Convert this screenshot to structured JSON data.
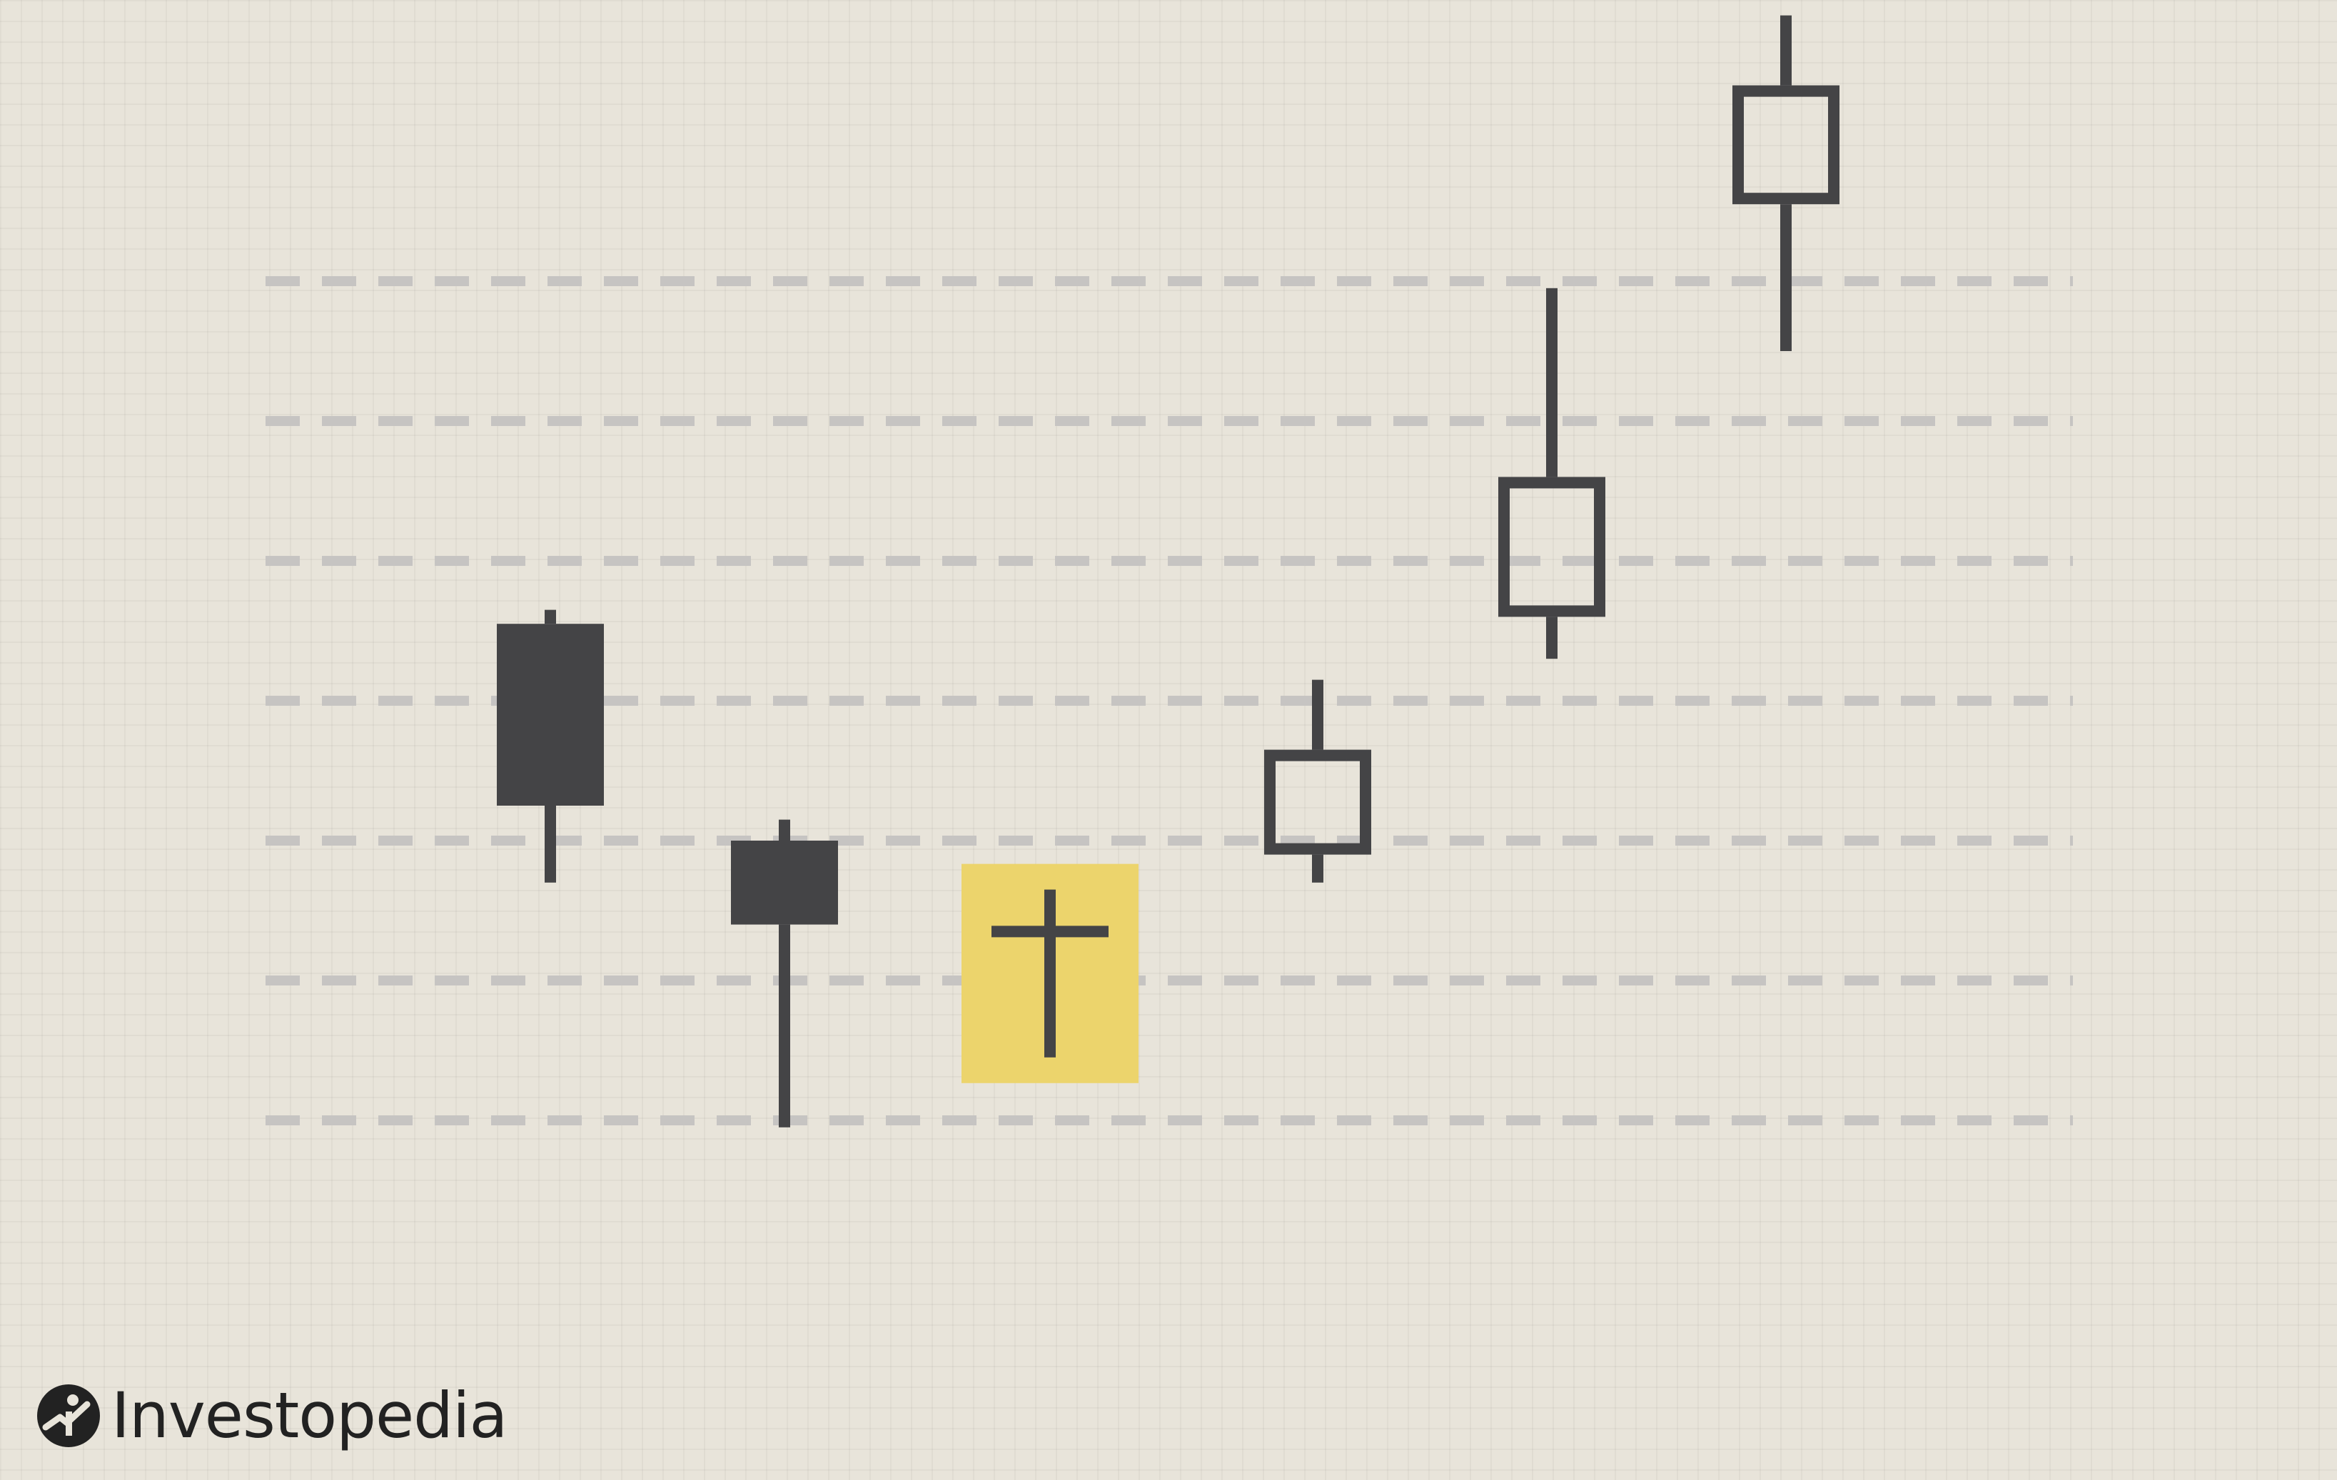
{
  "chart_data": {
    "type": "candlestick",
    "title": "",
    "xlabel": "",
    "ylabel": "",
    "grid": true,
    "ylim": [
      0,
      10
    ],
    "gridlines": [
      2,
      3,
      4,
      5,
      6,
      7,
      8
    ],
    "candles": [
      {
        "open": 5.55,
        "high": 5.65,
        "low": 3.7,
        "close": 4.25,
        "style": "bearish"
      },
      {
        "open": 4.0,
        "high": 4.15,
        "low": 1.95,
        "close": 3.4,
        "style": "bearish"
      },
      {
        "open": 3.35,
        "high": 3.65,
        "low": 2.45,
        "close": 3.35,
        "style": "doji",
        "highlighted": true
      },
      {
        "open": 3.9,
        "high": 5.15,
        "low": 3.7,
        "close": 4.65,
        "style": "bullish"
      },
      {
        "open": 5.6,
        "high": 7.95,
        "low": 5.3,
        "close": 6.6,
        "style": "bullish"
      },
      {
        "open": 8.55,
        "high": 9.9,
        "low": 7.5,
        "close": 9.4,
        "style": "bullish"
      }
    ],
    "colors": {
      "background": "#e8e4da",
      "candle": "#444446",
      "gridline": "#c6c4c2",
      "highlight": "#ecd46c"
    }
  },
  "brand": {
    "name": "Investopedia",
    "icon": "investopedia-logo-icon"
  }
}
